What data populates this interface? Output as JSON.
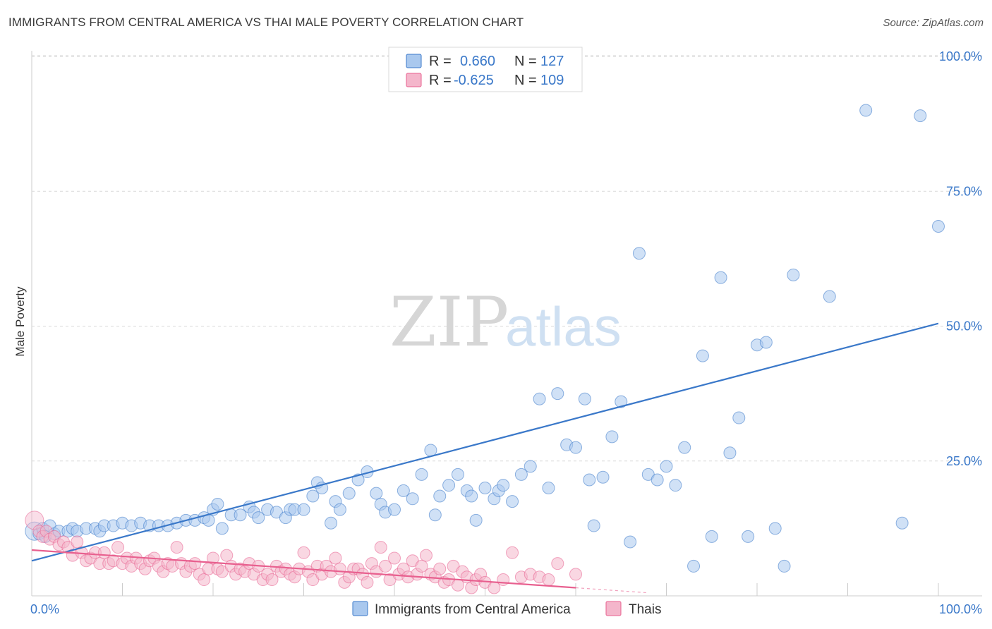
{
  "title": "IMMIGRANTS FROM CENTRAL AMERICA VS THAI MALE POVERTY CORRELATION CHART",
  "source": "Source: ZipAtlas.com",
  "watermark": {
    "zip": "ZIP",
    "atlas": "atlas"
  },
  "colors": {
    "blue": "#3a78c9",
    "blue_fill": "#a9c8ee",
    "pink": "#e8608f",
    "pink_fill": "#f4b6cb",
    "grid": "#d9d9d9"
  },
  "legend": {
    "r_label": "R =",
    "n_label": "N =",
    "rows": [
      {
        "r": "0.660",
        "n": "127",
        "color": "blue"
      },
      {
        "r": "-0.625",
        "n": "109",
        "color": "pink"
      }
    ]
  },
  "chart_data": {
    "type": "scatter",
    "title": "IMMIGRANTS FROM CENTRAL AMERICA VS THAI MALE POVERTY CORRELATION CHART",
    "xlabel": "",
    "ylabel": "Male Poverty",
    "xlim": [
      0,
      100
    ],
    "ylim": [
      0,
      105
    ],
    "x_tick_labels": [
      "0.0%",
      "100.0%"
    ],
    "y_ticks": [
      25,
      50,
      75,
      100
    ],
    "y_tick_labels": [
      "25.0%",
      "50.0%",
      "75.0%",
      "100.0%"
    ],
    "grid": true,
    "legend_position": "top-center",
    "series": [
      {
        "name": "Immigrants from Central America",
        "color": "blue",
        "R": 0.66,
        "N": 127,
        "trend": {
          "x": [
            0,
            100
          ],
          "y": [
            6.5,
            50.5
          ]
        },
        "points": [
          [
            0.3,
            12
          ],
          [
            0.8,
            11.5
          ],
          [
            1.2,
            12.5
          ],
          [
            1.5,
            11
          ],
          [
            2,
            13
          ],
          [
            2.5,
            11.5
          ],
          [
            3,
            12
          ],
          [
            4,
            12
          ],
          [
            4.5,
            12.5
          ],
          [
            5,
            12
          ],
          [
            6,
            12.5
          ],
          [
            7,
            12.5
          ],
          [
            7.5,
            12
          ],
          [
            8,
            13
          ],
          [
            9,
            13
          ],
          [
            10,
            13.5
          ],
          [
            11,
            13
          ],
          [
            12,
            13.5
          ],
          [
            13,
            13
          ],
          [
            14,
            13
          ],
          [
            15,
            13
          ],
          [
            16,
            13.5
          ],
          [
            17,
            14
          ],
          [
            18,
            14
          ],
          [
            19,
            14.5
          ],
          [
            19.5,
            14
          ],
          [
            20,
            16
          ],
          [
            20.5,
            17
          ],
          [
            21,
            12.5
          ],
          [
            22,
            15
          ],
          [
            23,
            15
          ],
          [
            24,
            16.5
          ],
          [
            24.5,
            15.5
          ],
          [
            25,
            14.5
          ],
          [
            26,
            16
          ],
          [
            27,
            15.5
          ],
          [
            28,
            14.5
          ],
          [
            28.5,
            16
          ],
          [
            29,
            16
          ],
          [
            30,
            16
          ],
          [
            31,
            18.5
          ],
          [
            31.5,
            21
          ],
          [
            32,
            20
          ],
          [
            33,
            13.5
          ],
          [
            33.5,
            17.5
          ],
          [
            34,
            16
          ],
          [
            35,
            19
          ],
          [
            36,
            21.5
          ],
          [
            37,
            23
          ],
          [
            38,
            19
          ],
          [
            38.5,
            17
          ],
          [
            39,
            15.5
          ],
          [
            40,
            16
          ],
          [
            41,
            19.5
          ],
          [
            42,
            18
          ],
          [
            43,
            22.5
          ],
          [
            44,
            27
          ],
          [
            44.5,
            15
          ],
          [
            45,
            18.5
          ],
          [
            46,
            20.5
          ],
          [
            47,
            22.5
          ],
          [
            48,
            19.5
          ],
          [
            48.5,
            18.5
          ],
          [
            49,
            14
          ],
          [
            50,
            20
          ],
          [
            51,
            18
          ],
          [
            51.5,
            19.5
          ],
          [
            52,
            20.5
          ],
          [
            53,
            17.5
          ],
          [
            54,
            22.5
          ],
          [
            55,
            24
          ],
          [
            56,
            36.5
          ],
          [
            57,
            20
          ],
          [
            58,
            37.5
          ],
          [
            59,
            28
          ],
          [
            60,
            27.5
          ],
          [
            61,
            36.5
          ],
          [
            61.5,
            21.5
          ],
          [
            62,
            13
          ],
          [
            63,
            22
          ],
          [
            64,
            29.5
          ],
          [
            65,
            36
          ],
          [
            66,
            10
          ],
          [
            67,
            63.5
          ],
          [
            68,
            22.5
          ],
          [
            69,
            21.5
          ],
          [
            70,
            24
          ],
          [
            71,
            20.5
          ],
          [
            72,
            27.5
          ],
          [
            73,
            5.5
          ],
          [
            74,
            44.5
          ],
          [
            75,
            11
          ],
          [
            76,
            59
          ],
          [
            77,
            26.5
          ],
          [
            78,
            33
          ],
          [
            79,
            11
          ],
          [
            80,
            46.5
          ],
          [
            81,
            47
          ],
          [
            82,
            12.5
          ],
          [
            83,
            5.5
          ],
          [
            84,
            59.5
          ],
          [
            88,
            55.5
          ],
          [
            92,
            90
          ],
          [
            96,
            13.5
          ],
          [
            98,
            89
          ],
          [
            100,
            68.5
          ]
        ]
      },
      {
        "name": "Thais",
        "color": "pink",
        "R": -0.625,
        "N": 109,
        "trend": {
          "x": [
            0,
            60
          ],
          "y": [
            8.5,
            1.5
          ]
        },
        "points": [
          [
            0.3,
            14
          ],
          [
            0.8,
            12
          ],
          [
            1.2,
            11
          ],
          [
            1.6,
            12
          ],
          [
            2,
            10.5
          ],
          [
            2.5,
            11
          ],
          [
            3,
            9.5
          ],
          [
            3.5,
            10
          ],
          [
            4,
            9
          ],
          [
            4.5,
            7.5
          ],
          [
            5,
            10
          ],
          [
            5.5,
            8
          ],
          [
            6,
            6.5
          ],
          [
            6.5,
            7
          ],
          [
            7,
            8
          ],
          [
            7.5,
            6
          ],
          [
            8,
            8
          ],
          [
            8.5,
            6
          ],
          [
            9,
            6.5
          ],
          [
            9.5,
            9
          ],
          [
            10,
            6
          ],
          [
            10.5,
            7
          ],
          [
            11,
            5.5
          ],
          [
            11.5,
            7
          ],
          [
            12,
            6
          ],
          [
            12.5,
            5
          ],
          [
            13,
            6.5
          ],
          [
            13.5,
            7
          ],
          [
            14,
            5.5
          ],
          [
            14.5,
            4.5
          ],
          [
            15,
            6
          ],
          [
            15.5,
            5.5
          ],
          [
            16,
            9
          ],
          [
            16.5,
            6
          ],
          [
            17,
            4.5
          ],
          [
            17.5,
            5.5
          ],
          [
            18,
            6
          ],
          [
            18.5,
            4
          ],
          [
            19,
            3
          ],
          [
            19.5,
            5
          ],
          [
            20,
            7
          ],
          [
            20.5,
            5
          ],
          [
            21,
            4.5
          ],
          [
            21.5,
            7.5
          ],
          [
            22,
            5.5
          ],
          [
            22.5,
            4
          ],
          [
            23,
            5
          ],
          [
            23.5,
            4.5
          ],
          [
            24,
            6
          ],
          [
            24.5,
            4
          ],
          [
            25,
            5.5
          ],
          [
            25.5,
            3
          ],
          [
            26,
            4
          ],
          [
            26.5,
            3
          ],
          [
            27,
            5.5
          ],
          [
            27.5,
            4.5
          ],
          [
            28,
            5
          ],
          [
            28.5,
            4
          ],
          [
            29,
            3.5
          ],
          [
            29.5,
            5
          ],
          [
            30,
            8
          ],
          [
            30.5,
            4.5
          ],
          [
            31,
            3
          ],
          [
            31.5,
            5.5
          ],
          [
            32,
            4
          ],
          [
            32.5,
            5.5
          ],
          [
            33,
            4.5
          ],
          [
            33.5,
            7
          ],
          [
            34,
            5
          ],
          [
            34.5,
            2.5
          ],
          [
            35,
            3.5
          ],
          [
            35.5,
            5
          ],
          [
            36,
            5
          ],
          [
            36.5,
            4
          ],
          [
            37,
            2.5
          ],
          [
            37.5,
            6
          ],
          [
            38,
            4.5
          ],
          [
            38.5,
            9
          ],
          [
            39,
            5.5
          ],
          [
            39.5,
            3
          ],
          [
            40,
            7
          ],
          [
            40.5,
            4
          ],
          [
            41,
            5
          ],
          [
            41.5,
            3.5
          ],
          [
            42,
            6.5
          ],
          [
            42.5,
            4
          ],
          [
            43,
            5.5
          ],
          [
            43.5,
            7.5
          ],
          [
            44,
            4
          ],
          [
            44.5,
            3.5
          ],
          [
            45,
            5
          ],
          [
            45.5,
            2.5
          ],
          [
            46,
            3
          ],
          [
            46.5,
            5.5
          ],
          [
            47,
            2
          ],
          [
            47.5,
            4.5
          ],
          [
            48,
            3.5
          ],
          [
            48.5,
            1.5
          ],
          [
            49,
            3
          ],
          [
            49.5,
            4
          ],
          [
            50,
            2.5
          ],
          [
            51,
            1.5
          ],
          [
            52,
            3
          ],
          [
            53,
            8
          ],
          [
            54,
            3.5
          ],
          [
            55,
            4
          ],
          [
            56,
            3.5
          ],
          [
            57,
            3
          ],
          [
            58,
            6
          ],
          [
            60,
            4
          ]
        ]
      }
    ]
  },
  "bottom_legend": [
    {
      "label": "Immigrants from Central America",
      "color": "blue"
    },
    {
      "label": "Thais",
      "color": "pink"
    }
  ]
}
